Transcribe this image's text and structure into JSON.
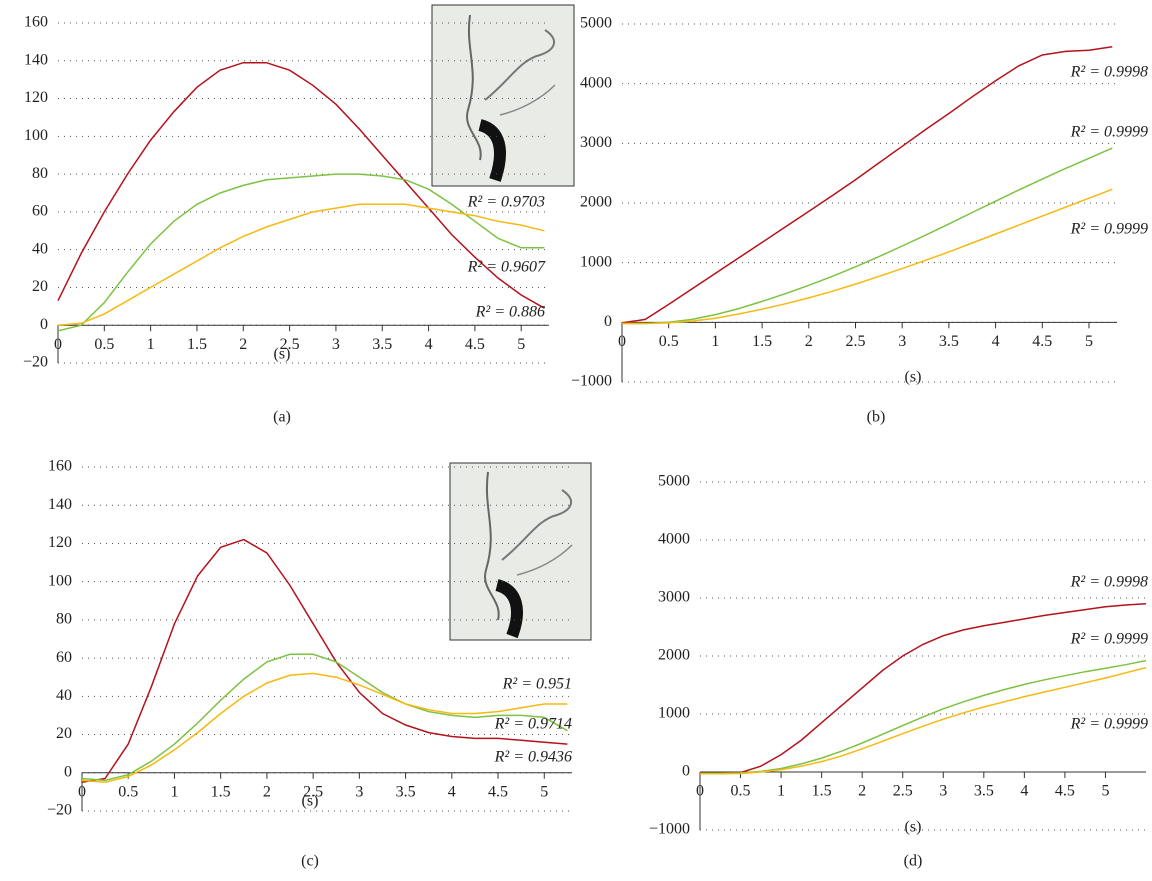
{
  "chart_data": [
    {
      "type": "line",
      "panel_label": "(a)",
      "x_label": "(s)",
      "grid": true,
      "x": [
        0,
        0.25,
        0.5,
        0.75,
        1,
        1.25,
        1.5,
        1.75,
        2,
        2.25,
        2.5,
        2.75,
        3,
        3.25,
        3.5,
        3.75,
        4,
        4.25,
        4.5,
        4.75,
        5,
        5.25
      ],
      "xlim": [
        0,
        5.3
      ],
      "xticks": [
        0,
        0.5,
        1,
        1.5,
        2,
        2.5,
        3,
        3.5,
        4,
        4.5,
        5
      ],
      "ylim": [
        -20,
        160
      ],
      "yticks": [
        {
          "value": -20,
          "label": "−20"
        },
        0,
        20,
        40,
        60,
        80,
        100,
        120,
        140,
        160
      ],
      "series": [
        {
          "color": "#b5121b",
          "label": "R² = 0.9703",
          "values": [
            13,
            38,
            60,
            80,
            98,
            113,
            126,
            135,
            139,
            139,
            135,
            127,
            117,
            104,
            90,
            76,
            62,
            48,
            36,
            25,
            16,
            9
          ]
        },
        {
          "color": "#7dc242",
          "label": "R² = 0.9607",
          "values": [
            -3,
            0,
            12,
            28,
            43,
            55,
            64,
            70,
            74,
            77,
            78,
            79,
            80,
            80,
            79,
            77,
            72,
            64,
            55,
            46,
            41,
            41
          ]
        },
        {
          "color": "#f5b90f",
          "label": "R² = 0.886",
          "values": [
            0,
            1,
            6,
            13,
            20,
            27,
            34,
            41,
            47,
            52,
            56,
            60,
            62,
            64,
            64,
            64,
            62,
            60,
            58,
            55,
            53,
            50
          ]
        }
      ]
    },
    {
      "type": "line",
      "panel_label": "(b)",
      "x_label": "(s)",
      "grid": true,
      "x": [
        0,
        0.25,
        0.5,
        0.75,
        1,
        1.25,
        1.5,
        1.75,
        2,
        2.25,
        2.5,
        2.75,
        3,
        3.25,
        3.5,
        3.75,
        4,
        4.25,
        4.5,
        4.75,
        5,
        5.25
      ],
      "xlim": [
        0,
        5.3
      ],
      "xticks": [
        0,
        0.5,
        1,
        1.5,
        2,
        2.5,
        3,
        3.5,
        4,
        4.5,
        5
      ],
      "ylim": [
        -1000,
        5000
      ],
      "yticks": [
        {
          "value": -1000,
          "label": "−1000"
        },
        0,
        1000,
        2000,
        3000,
        4000,
        5000
      ],
      "series": [
        {
          "color": "#b5121b",
          "label": "R² = 0.9998",
          "values": [
            -10,
            50,
            300,
            560,
            820,
            1080,
            1340,
            1600,
            1860,
            2120,
            2390,
            2670,
            2950,
            3230,
            3500,
            3780,
            4050,
            4300,
            4480,
            4540,
            4560,
            4620
          ]
        },
        {
          "color": "#7dc242",
          "label": "R² = 0.9999",
          "values": [
            -20,
            -20,
            0,
            50,
            130,
            230,
            350,
            480,
            620,
            770,
            930,
            1100,
            1280,
            1460,
            1650,
            1840,
            2030,
            2220,
            2400,
            2580,
            2750,
            2920
          ]
        },
        {
          "color": "#f5b90f",
          "label": "R² = 0.9999",
          "values": [
            -20,
            -20,
            -10,
            20,
            70,
            140,
            220,
            310,
            410,
            520,
            640,
            770,
            900,
            1040,
            1180,
            1330,
            1480,
            1630,
            1780,
            1930,
            2080,
            2230
          ]
        }
      ]
    },
    {
      "type": "line",
      "panel_label": "(c)",
      "x_label": "(s)",
      "grid": true,
      "x": [
        0,
        0.25,
        0.5,
        0.75,
        1,
        1.25,
        1.5,
        1.75,
        2,
        2.25,
        2.5,
        2.75,
        3,
        3.25,
        3.5,
        3.75,
        4,
        4.25,
        4.5,
        4.75,
        5,
        5.25
      ],
      "xlim": [
        0,
        5.3
      ],
      "xticks": [
        0,
        0.5,
        1,
        1.5,
        2,
        2.5,
        3,
        3.5,
        4,
        4.5,
        5
      ],
      "ylim": [
        -20,
        160
      ],
      "yticks": [
        {
          "value": -20,
          "label": "−20"
        },
        0,
        20,
        40,
        60,
        80,
        100,
        120,
        140,
        160
      ],
      "series": [
        {
          "color": "#b5121b",
          "label": "R² = 0.9436",
          "values": [
            -5,
            -3,
            15,
            45,
            78,
            103,
            118,
            122,
            115,
            98,
            78,
            58,
            42,
            31,
            25,
            21,
            19,
            18,
            18,
            17,
            16,
            15
          ]
        },
        {
          "color": "#7dc242",
          "label": "R² = 0.9714",
          "values": [
            -3,
            -4,
            -1,
            6,
            15,
            26,
            38,
            49,
            58,
            62,
            62,
            58,
            50,
            42,
            36,
            32,
            30,
            29,
            30,
            30,
            29,
            22
          ]
        },
        {
          "color": "#f5b90f",
          "label": "R² = 0.951",
          "values": [
            -4,
            -5,
            -2,
            4,
            12,
            21,
            31,
            40,
            47,
            51,
            52,
            50,
            46,
            41,
            36,
            33,
            31,
            31,
            32,
            34,
            36,
            36
          ]
        }
      ]
    },
    {
      "type": "line",
      "panel_label": "(d)",
      "x_label": "(s)",
      "grid": true,
      "x": [
        0,
        0.25,
        0.5,
        0.75,
        1,
        1.25,
        1.5,
        1.75,
        2,
        2.25,
        2.5,
        2.75,
        3,
        3.25,
        3.5,
        3.75,
        4,
        4.25,
        4.5,
        4.75,
        5,
        5.25,
        5.5
      ],
      "xlim": [
        0,
        5.5
      ],
      "xticks": [
        0,
        0.5,
        1,
        1.5,
        2,
        2.5,
        3,
        3.5,
        4,
        4.5,
        5
      ],
      "ylim": [
        -1000,
        5000
      ],
      "yticks": [
        {
          "value": -1000,
          "label": "−1000"
        },
        0,
        1000,
        2000,
        3000,
        4000,
        5000
      ],
      "series": [
        {
          "color": "#b5121b",
          "label": "R² = 0.9998",
          "values": [
            -20,
            -20,
            -10,
            100,
            300,
            550,
            850,
            1150,
            1450,
            1750,
            2000,
            2200,
            2350,
            2450,
            2520,
            2580,
            2640,
            2700,
            2750,
            2800,
            2850,
            2880,
            2900
          ]
        },
        {
          "color": "#7dc242",
          "label": "R² = 0.9999",
          "values": [
            -20,
            -20,
            -15,
            10,
            60,
            140,
            240,
            360,
            500,
            650,
            800,
            950,
            1090,
            1210,
            1320,
            1420,
            1510,
            1590,
            1660,
            1730,
            1790,
            1850,
            1920
          ]
        },
        {
          "color": "#f5b90f",
          "label": "R² = 0.9999",
          "values": [
            -30,
            -30,
            -25,
            0,
            40,
            100,
            180,
            280,
            400,
            530,
            660,
            790,
            910,
            1020,
            1120,
            1210,
            1300,
            1380,
            1460,
            1540,
            1620,
            1710,
            1800
          ]
        }
      ]
    }
  ]
}
